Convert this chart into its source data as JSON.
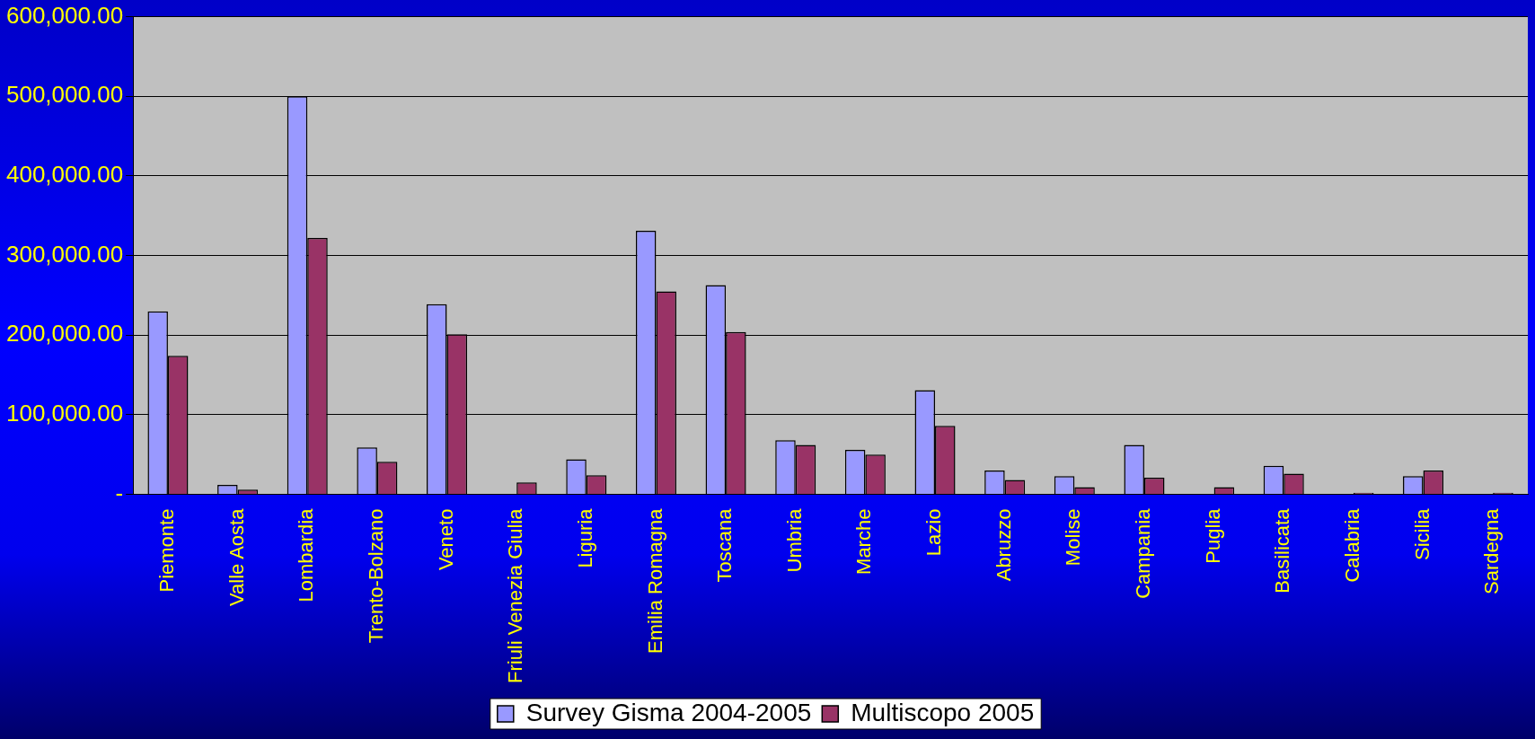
{
  "chart_data": {
    "type": "bar",
    "categories": [
      "Piemonte",
      "Valle Aosta",
      "Lombardia",
      "Trento-Bolzano",
      "Veneto",
      "Friuli Venezia Giulia",
      "Liguria",
      "Emilia Romagna",
      "Toscana",
      "Umbria",
      "Marche",
      "Lazio",
      "Abruzzo",
      "Molise",
      "Campania",
      "Puglia",
      "Basilicata",
      "Calabria",
      "Sicilia",
      "Sardegna"
    ],
    "series": [
      {
        "name": "Survey Gisma 2004-2005",
        "color": "#9999ff",
        "values": [
          230000,
          12000,
          500000,
          59000,
          239000,
          null,
          44000,
          331000,
          263000,
          68000,
          56000,
          131000,
          30000,
          23000,
          62000,
          null,
          36000,
          null,
          23000,
          null
        ]
      },
      {
        "name": "Multiscopo 2005",
        "color": "#993366",
        "values": [
          174000,
          6000,
          322000,
          41000,
          201000,
          15000,
          24000,
          255000,
          204000,
          62000,
          50000,
          86000,
          18000,
          9000,
          21000,
          9000,
          26000,
          2000,
          30000,
          2000
        ]
      }
    ],
    "ylim": [
      0,
      600000
    ],
    "yticks": [
      {
        "value": 0,
        "label": "-"
      },
      {
        "value": 100000,
        "label": "100,000.00"
      },
      {
        "value": 200000,
        "label": "200,000.00"
      },
      {
        "value": 300000,
        "label": "300,000.00"
      },
      {
        "value": 400000,
        "label": "400,000.00"
      },
      {
        "value": 500000,
        "label": "500,000.00"
      },
      {
        "value": 600000,
        "label": "600,000.00"
      }
    ],
    "grid": "y",
    "legend": "bottom"
  }
}
